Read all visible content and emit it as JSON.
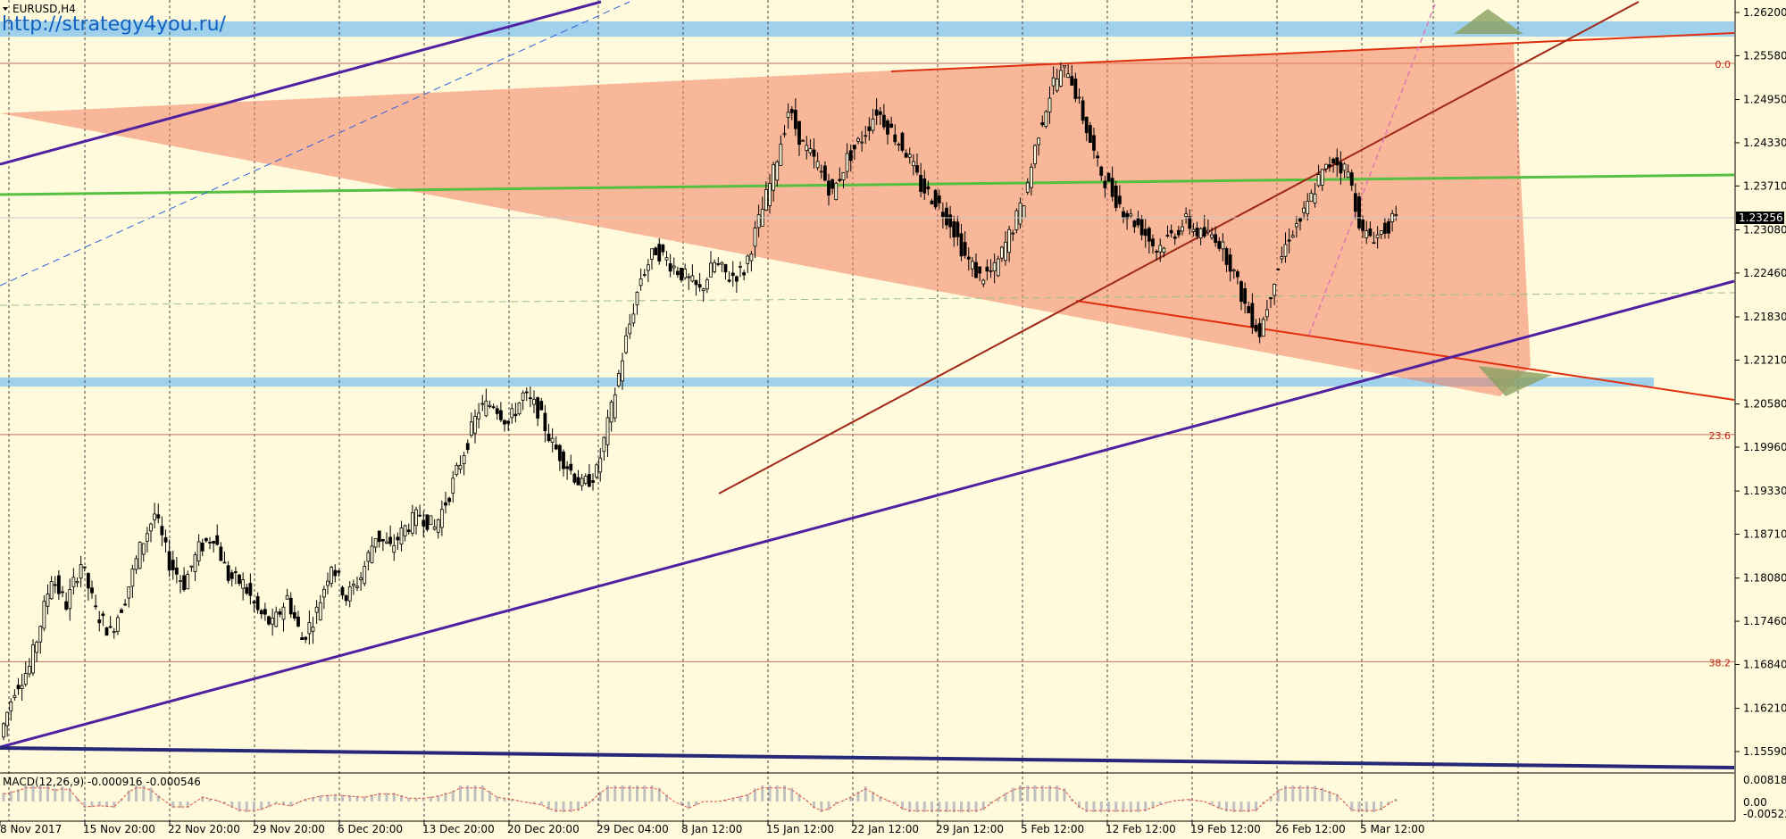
{
  "window": {
    "symbol_title": "EURUSD,H4",
    "watermark_url": "http://strategy4you.ru/"
  },
  "colors": {
    "background": "#fffadc",
    "candle": "#000000",
    "triangle_fill": "#f08060",
    "triangle_edge": "#e03010",
    "support_zone": "#9fd0ec",
    "ma_line": "#55c040",
    "trend_purple": "#5020a0",
    "trend_brown": "#a02818",
    "fib_line": "#c07060",
    "macd_hist": "#c0c0c0",
    "macd_signal": "#e05040"
  },
  "chart_data": {
    "type": "candlestick",
    "symbol": "EURUSD",
    "timeframe": "H4",
    "y_ticks": [
      "1.26200",
      "1.25580",
      "1.24950",
      "1.24330",
      "1.23710",
      "1.23080",
      "1.22460",
      "1.21830",
      "1.21210",
      "1.20580",
      "1.19960",
      "1.19330",
      "1.18710",
      "1.18080",
      "1.17460",
      "1.16840",
      "1.16210",
      "1.15590"
    ],
    "ylim": [
      1.1545,
      1.2632
    ],
    "x_ticks": [
      "8 Nov 2017",
      "15 Nov 20:00",
      "22 Nov 20:00",
      "29 Nov 20:00",
      "6 Dec 20:00",
      "13 Dec 20:00",
      "20 Dec 20:00",
      "29 Dec 04:00",
      "8 Jan 12:00",
      "15 Jan 12:00",
      "22 Jan 12:00",
      "29 Jan 12:00",
      "5 Feb 12:00",
      "12 Feb 12:00",
      "19 Feb 12:00",
      "26 Feb 12:00",
      "5 Mar 12:00"
    ],
    "current_price": "1.23256",
    "fib_levels": [
      {
        "label": "0.0",
        "price": 1.2547
      },
      {
        "label": "23.6",
        "price": 1.2014
      },
      {
        "label": "38.2",
        "price": 1.1688
      }
    ],
    "price_path": [
      [
        0,
        1.158
      ],
      [
        2,
        1.165
      ],
      [
        4,
        1.168
      ],
      [
        5,
        1.172
      ],
      [
        7,
        1.181
      ],
      [
        9,
        1.177
      ],
      [
        11,
        1.183
      ],
      [
        13,
        1.176
      ],
      [
        15,
        1.173
      ],
      [
        17,
        1.178
      ],
      [
        19,
        1.185
      ],
      [
        21,
        1.19
      ],
      [
        23,
        1.183
      ],
      [
        25,
        1.18
      ],
      [
        27,
        1.185
      ],
      [
        29,
        1.187
      ],
      [
        31,
        1.181
      ],
      [
        33,
        1.18
      ],
      [
        35,
        1.176
      ],
      [
        37,
        1.174
      ],
      [
        39,
        1.178
      ],
      [
        41,
        1.172
      ],
      [
        43,
        1.176
      ],
      [
        45,
        1.183
      ],
      [
        47,
        1.178
      ],
      [
        49,
        1.181
      ],
      [
        51,
        1.187
      ],
      [
        53,
        1.185
      ],
      [
        55,
        1.188
      ],
      [
        57,
        1.19
      ],
      [
        59,
        1.188
      ],
      [
        61,
        1.193
      ],
      [
        63,
        1.199
      ],
      [
        65,
        1.205
      ],
      [
        67,
        1.206
      ],
      [
        69,
        1.203
      ],
      [
        71,
        1.207
      ],
      [
        73,
        1.205
      ],
      [
        75,
        1.2
      ],
      [
        77,
        1.197
      ],
      [
        79,
        1.194
      ],
      [
        81,
        1.196
      ],
      [
        83,
        1.205
      ],
      [
        85,
        1.215
      ],
      [
        87,
        1.224
      ],
      [
        89,
        1.228
      ],
      [
        91,
        1.226
      ],
      [
        93,
        1.224
      ],
      [
        95,
        1.222
      ],
      [
        97,
        1.226
      ],
      [
        99,
        1.224
      ],
      [
        101,
        1.225
      ],
      [
        103,
        1.232
      ],
      [
        105,
        1.239
      ],
      [
        107,
        1.248
      ],
      [
        109,
        1.243
      ],
      [
        111,
        1.24
      ],
      [
        113,
        1.236
      ],
      [
        115,
        1.241
      ],
      [
        117,
        1.244
      ],
      [
        119,
        1.248
      ],
      [
        121,
        1.245
      ],
      [
        123,
        1.242
      ],
      [
        125,
        1.237
      ],
      [
        127,
        1.235
      ],
      [
        129,
        1.232
      ],
      [
        131,
        1.227
      ],
      [
        133,
        1.224
      ],
      [
        135,
        1.225
      ],
      [
        137,
        1.23
      ],
      [
        139,
        1.235
      ],
      [
        141,
        1.245
      ],
      [
        143,
        1.252
      ],
      [
        145,
        1.254
      ],
      [
        147,
        1.247
      ],
      [
        149,
        1.24
      ],
      [
        151,
        1.236
      ],
      [
        153,
        1.233
      ],
      [
        155,
        1.231
      ],
      [
        157,
        1.228
      ],
      [
        159,
        1.23
      ],
      [
        161,
        1.232
      ],
      [
        163,
        1.23
      ],
      [
        165,
        1.23
      ],
      [
        167,
        1.226
      ],
      [
        169,
        1.22
      ],
      [
        171,
        1.216
      ],
      [
        173,
        1.224
      ],
      [
        175,
        1.23
      ],
      [
        177,
        1.233
      ],
      [
        179,
        1.238
      ],
      [
        181,
        1.241
      ],
      [
        183,
        1.239
      ],
      [
        185,
        1.23
      ],
      [
        187,
        1.23
      ],
      [
        189,
        1.232
      ]
    ],
    "panels": [
      {
        "type": "indicator",
        "name": "MACD(12,26,9) -0.000916 -0.000546",
        "y_ticks": [
          "0.008181",
          "0.00",
          "-0.005221"
        ]
      }
    ]
  }
}
